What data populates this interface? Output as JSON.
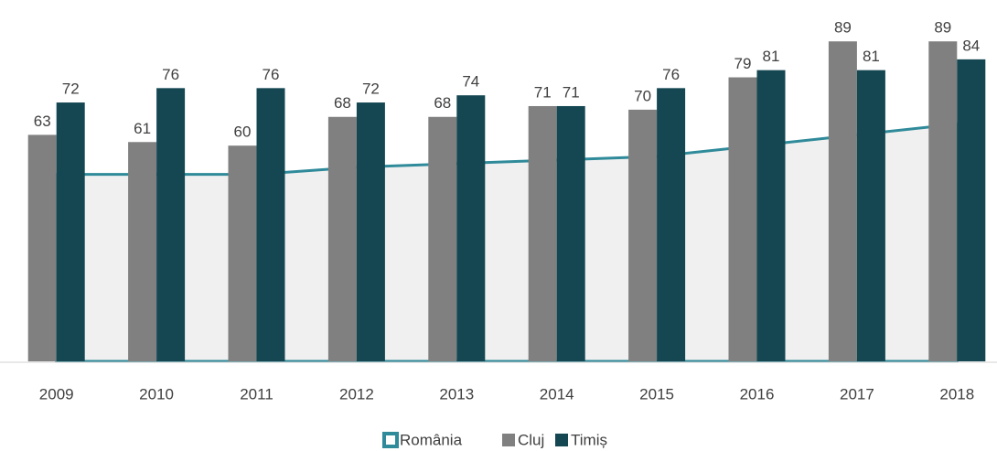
{
  "chart_data": {
    "type": "bar",
    "categories": [
      "2009",
      "2010",
      "2011",
      "2012",
      "2013",
      "2014",
      "2015",
      "2016",
      "2017",
      "2018"
    ],
    "series": [
      {
        "name": "România",
        "type": "area",
        "color": "#2f8a9a",
        "fill": "#f0f0f0",
        "values": [
          52,
          52,
          52,
          54,
          55,
          56,
          57,
          60,
          63,
          66
        ]
      },
      {
        "name": "Cluj",
        "color": "#808080",
        "values": [
          63,
          61,
          60,
          68,
          68,
          71,
          70,
          79,
          89,
          89
        ]
      },
      {
        "name": "Timiș",
        "color": "#154753",
        "values": [
          72,
          76,
          76,
          72,
          74,
          71,
          76,
          81,
          81,
          84
        ]
      }
    ],
    "ylim": [
      0,
      100
    ]
  }
}
